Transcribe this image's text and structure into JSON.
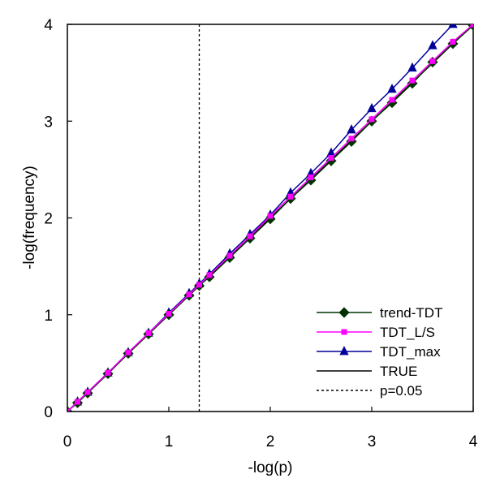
{
  "chart_data": {
    "type": "line",
    "xlabel": "-log(p)",
    "ylabel": "-log(frequency)",
    "xlim": [
      0,
      4
    ],
    "ylim": [
      0,
      4
    ],
    "xticks": [
      "0",
      "1",
      "2",
      "3",
      "4"
    ],
    "yticks": [
      "0",
      "1",
      "2",
      "3",
      "4"
    ],
    "grid": false,
    "legend_position": "bottom-right",
    "series": [
      {
        "name": "trend-TDT",
        "color": "#003300",
        "marker": "diamond",
        "x": [
          0,
          0.1,
          0.2,
          0.4,
          0.6,
          0.8,
          1.0,
          1.2,
          1.3,
          1.4,
          1.6,
          1.8,
          2.0,
          2.2,
          2.4,
          2.6,
          2.8,
          3.0,
          3.2,
          3.4,
          3.6,
          3.8,
          4.0
        ],
        "y": [
          0,
          0.09,
          0.19,
          0.39,
          0.6,
          0.8,
          1.0,
          1.2,
          1.3,
          1.39,
          1.59,
          1.79,
          1.99,
          2.2,
          2.39,
          2.59,
          2.79,
          3.0,
          3.19,
          3.39,
          3.61,
          3.8,
          3.99
        ]
      },
      {
        "name": "TDT_L/S",
        "color": "#ff00ff",
        "marker": "square",
        "x": [
          0,
          0.1,
          0.2,
          0.4,
          0.6,
          0.8,
          1.0,
          1.2,
          1.3,
          1.4,
          1.6,
          1.8,
          2.0,
          2.2,
          2.4,
          2.6,
          2.8,
          3.0,
          3.2,
          3.4,
          3.6,
          3.8,
          4.0
        ],
        "y": [
          0,
          0.1,
          0.2,
          0.4,
          0.61,
          0.81,
          1.01,
          1.21,
          1.31,
          1.41,
          1.61,
          1.81,
          2.02,
          2.22,
          2.42,
          2.62,
          2.82,
          3.02,
          3.22,
          3.42,
          3.62,
          3.82,
          4.0
        ]
      },
      {
        "name": "TDT_max",
        "color": "#000099",
        "marker": "triangle",
        "x": [
          0,
          0.1,
          0.2,
          0.4,
          0.6,
          0.8,
          1.0,
          1.2,
          1.3,
          1.4,
          1.6,
          1.8,
          2.0,
          2.2,
          2.4,
          2.6,
          2.8,
          3.0,
          3.2,
          3.4,
          3.6,
          3.8
        ],
        "y": [
          0,
          0.1,
          0.2,
          0.4,
          0.61,
          0.81,
          1.02,
          1.22,
          1.32,
          1.42,
          1.63,
          1.83,
          2.03,
          2.26,
          2.46,
          2.67,
          2.91,
          3.13,
          3.33,
          3.55,
          3.78,
          4.0
        ]
      },
      {
        "name": "TRUE",
        "color": "#000000",
        "marker": "none",
        "x": [
          0,
          4
        ],
        "y": [
          0,
          4
        ]
      }
    ],
    "reference_lines": [
      {
        "name": "p=0.05",
        "orientation": "vertical",
        "x": 1.3,
        "style": "dotted",
        "color": "#000000"
      }
    ]
  }
}
